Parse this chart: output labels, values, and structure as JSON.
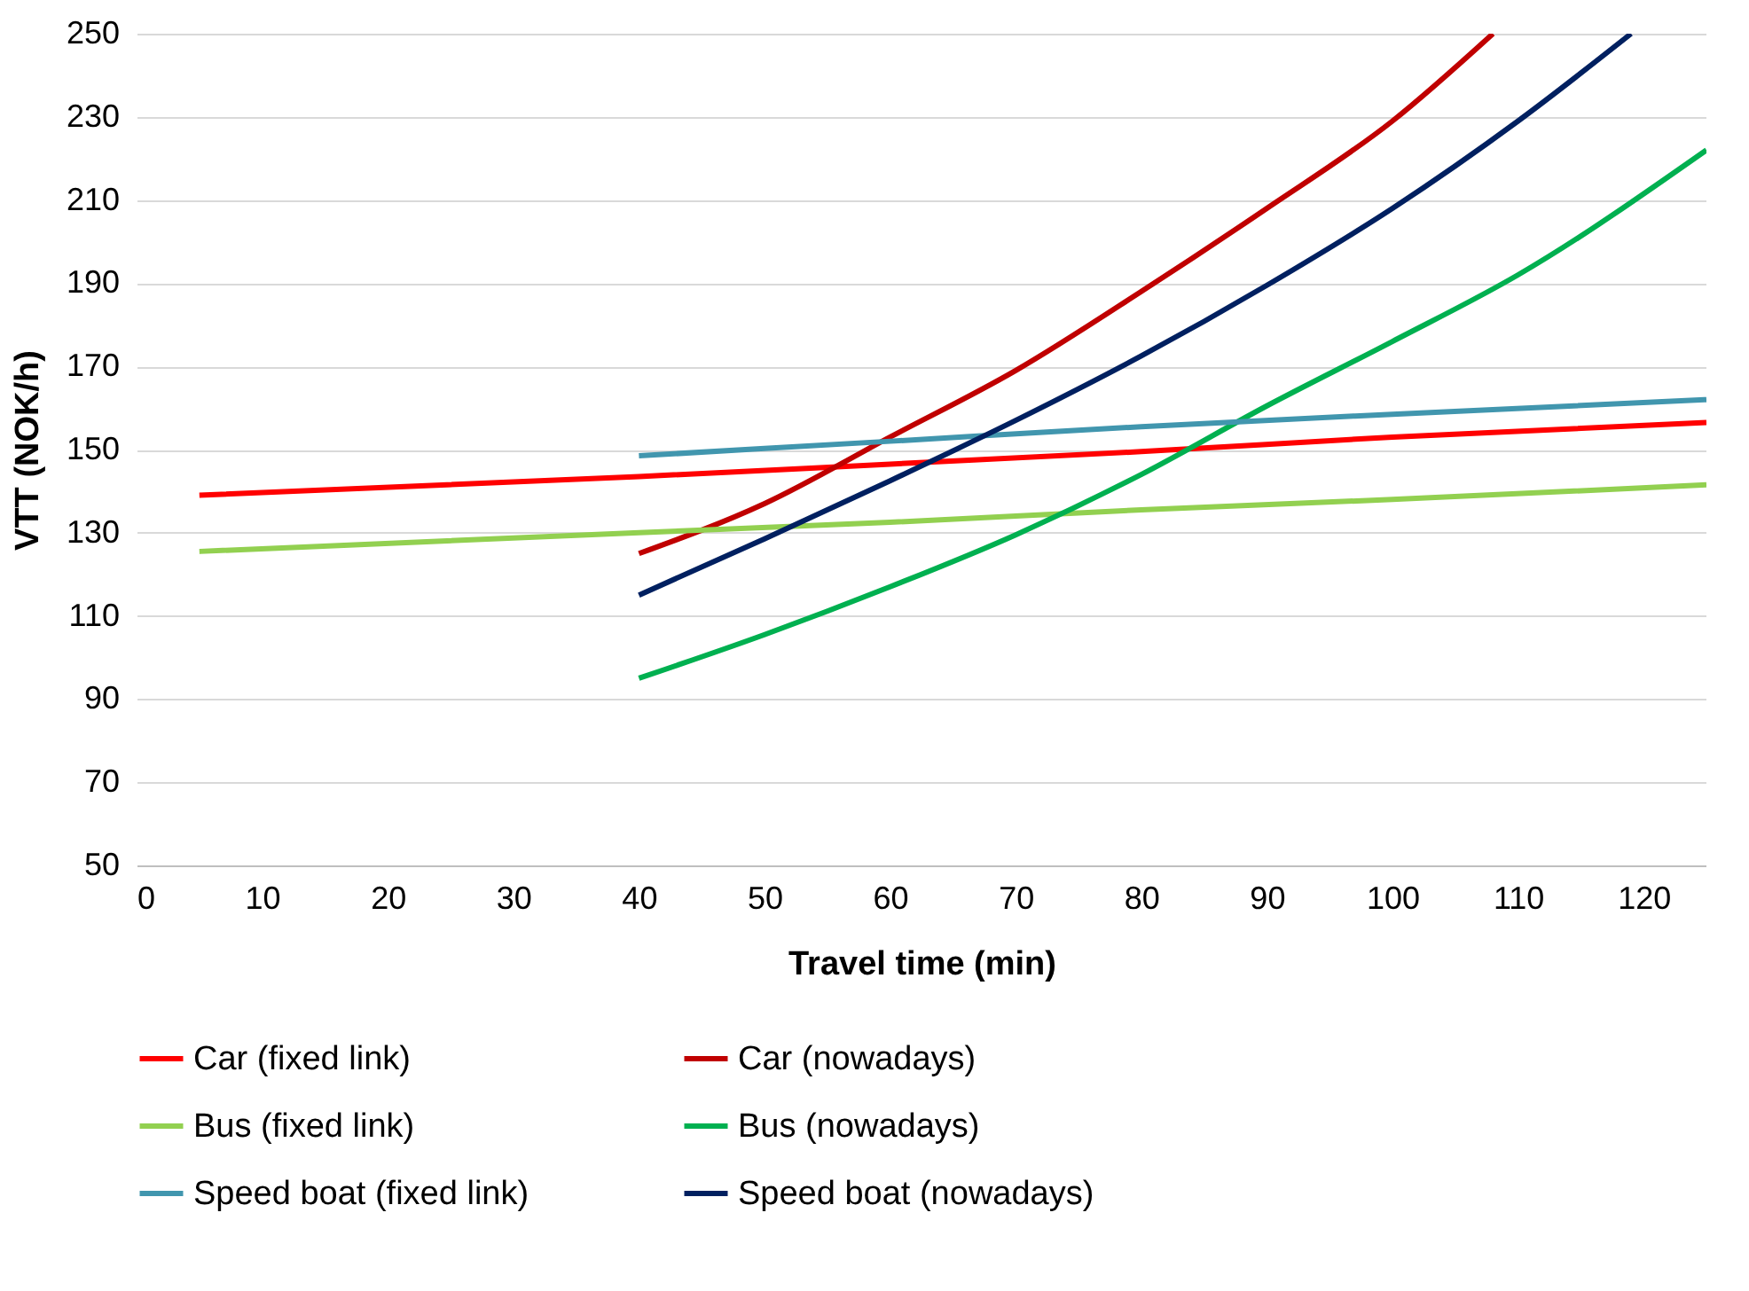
{
  "chart_data": {
    "type": "line",
    "xlabel": "Travel time (min)",
    "ylabel": "VTT (NOK/h)",
    "xlim": [
      0,
      125
    ],
    "xticks": [
      0,
      10,
      20,
      30,
      40,
      50,
      60,
      70,
      80,
      90,
      100,
      110,
      120
    ],
    "ylim": [
      50,
      250
    ],
    "yticks": [
      50,
      70,
      90,
      110,
      130,
      150,
      170,
      190,
      210,
      230,
      250
    ],
    "grid": "y",
    "legend": "bottom",
    "marker": "none",
    "line_style": "solid",
    "series": [
      {
        "name": "Car (fixed link)",
        "color": "#ff0000",
        "x": [
          5,
          40,
          60,
          80,
          100,
          125
        ],
        "values": [
          139,
          143.5,
          146.5,
          149.5,
          153,
          156.5
        ]
      },
      {
        "name": "Car (nowadays)",
        "color": "#c00000",
        "x": [
          40,
          50,
          60,
          70,
          80,
          90,
          100,
          108
        ],
        "values": [
          125,
          137,
          153,
          169,
          188,
          208,
          229,
          250
        ]
      },
      {
        "name": "Bus (fixed link)",
        "color": "#92d050",
        "x": [
          5,
          40,
          60,
          80,
          100,
          125
        ],
        "values": [
          125.5,
          130,
          132.5,
          135.5,
          138,
          141.5
        ]
      },
      {
        "name": "Bus (nowadays)",
        "color": "#00b050",
        "x": [
          40,
          50,
          60,
          70,
          80,
          90,
          100,
          110,
          125
        ],
        "values": [
          95,
          105.5,
          117,
          129.5,
          144,
          160.5,
          176,
          192,
          222
        ]
      },
      {
        "name": "Speed boat (fixed link)",
        "color": "#4196ae",
        "x": [
          40,
          60,
          80,
          100,
          125
        ],
        "values": [
          148.5,
          152,
          155.5,
          158.5,
          162
        ]
      },
      {
        "name": "Speed boat (nowadays)",
        "color": "#002060",
        "x": [
          40,
          50,
          60,
          70,
          80,
          90,
          100,
          110,
          119
        ],
        "values": [
          115,
          128.5,
          142.5,
          157,
          172.5,
          189.5,
          208,
          229,
          250
        ]
      }
    ]
  }
}
